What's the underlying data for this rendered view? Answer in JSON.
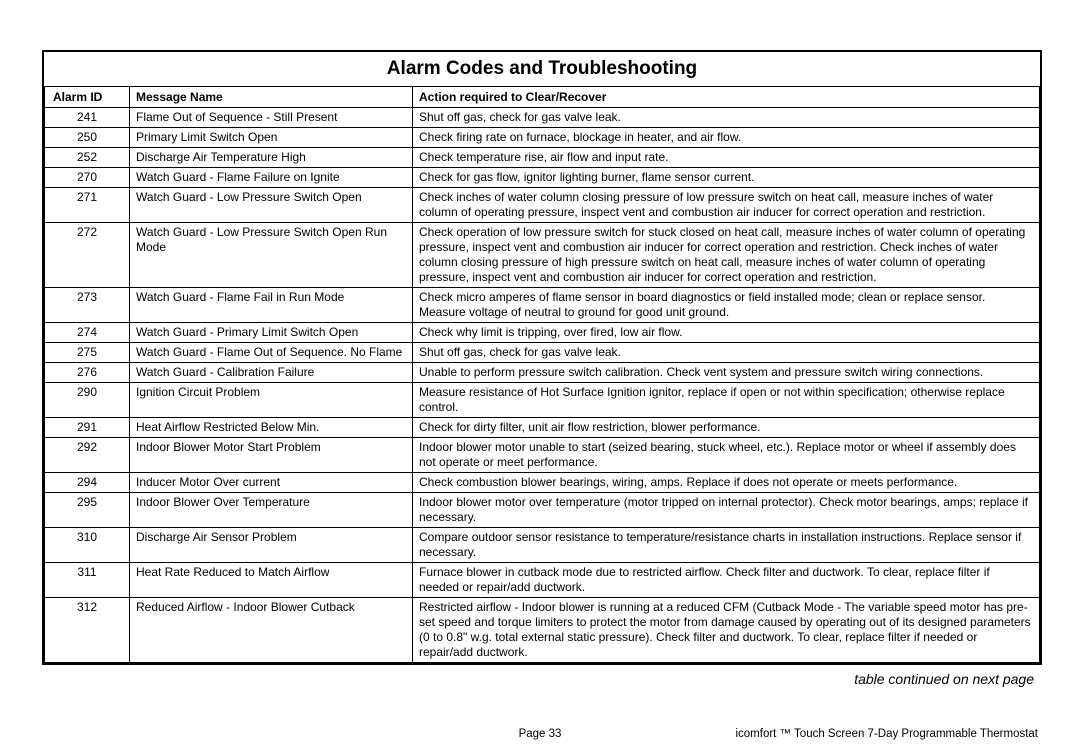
{
  "title": "Alarm Codes and Troubleshooting",
  "columns": {
    "id": "Alarm ID",
    "msg": "Message Name",
    "action": "Action required to Clear/Recover"
  },
  "rows": [
    {
      "id": "241",
      "msg": "Flame Out of Sequence - Still Present",
      "action": "Shut off gas, check for gas valve leak."
    },
    {
      "id": "250",
      "msg": "Primary Limit Switch Open",
      "action": "Check firing rate on furnace, blockage in heater, and air flow."
    },
    {
      "id": "252",
      "msg": "Discharge Air Temperature High",
      "action": "Check temperature rise, air flow and input rate."
    },
    {
      "id": "270",
      "msg": "Watch Guard - Flame Failure on Ignite",
      "action": "Check for gas flow, ignitor lighting burner, flame sensor current."
    },
    {
      "id": "271",
      "msg": "Watch Guard - Low Pressure Switch Open",
      "action": "Check inches of water column closing pressure of low pressure switch on heat call, measure inches of water column of operating pressure, inspect vent and combustion air inducer for correct operation and restriction."
    },
    {
      "id": "272",
      "msg": "Watch Guard - Low Pressure Switch Open Run Mode",
      "action": "Check operation of low pressure switch for stuck closed on heat call, measure inches of water column of operating pressure, inspect vent and combustion air inducer for correct operation and restriction. Check inches of water column closing pressure of high pressure switch on heat call, measure inches of water column of operating pressure, inspect vent and combustion air inducer for correct operation and restriction."
    },
    {
      "id": "273",
      "msg": "Watch Guard - Flame Fail in Run Mode",
      "action": "Check micro amperes of flame sensor in board diagnostics or field installed mode; clean or replace sensor. Measure voltage of neutral to ground for good unit ground."
    },
    {
      "id": "274",
      "msg": "Watch Guard - Primary Limit Switch Open",
      "action": "Check why limit is tripping, over fired, low air flow."
    },
    {
      "id": "275",
      "msg": "Watch Guard - Flame Out of Sequence. No Flame",
      "action": "Shut off gas, check for gas valve leak."
    },
    {
      "id": "276",
      "msg": "Watch Guard - Calibration Failure",
      "action": "Unable to perform pressure switch calibration. Check vent system and pressure switch wiring connections."
    },
    {
      "id": "290",
      "msg": "Ignition Circuit Problem",
      "action": "Measure resistance of Hot Surface Ignition ignitor, replace if open or not within specification; otherwise replace control."
    },
    {
      "id": "291",
      "msg": "Heat Airflow Restricted Below Min.",
      "action": "Check for dirty filter, unit air flow restriction, blower performance."
    },
    {
      "id": "292",
      "msg": "Indoor Blower Motor Start Problem",
      "action": "Indoor blower motor unable to start (seized bearing, stuck wheel, etc.). Replace motor or wheel if assembly does not operate or meet performance."
    },
    {
      "id": "294",
      "msg": "Inducer Motor Over current",
      "action": "Check combustion blower bearings, wiring, amps. Replace if does not operate or meets performance."
    },
    {
      "id": "295",
      "msg": "Indoor Blower Over Temperature",
      "action": "Indoor blower motor over temperature (motor tripped on internal protector). Check motor bearings, amps; replace if necessary."
    },
    {
      "id": "310",
      "msg": "Discharge Air Sensor Problem",
      "action": "Compare outdoor sensor resistance to temperature/resistance charts in installation instructions. Replace sensor if necessary."
    },
    {
      "id": "311",
      "msg": "Heat Rate Reduced to Match Airflow",
      "action": "Furnace blower in cutback mode due to restricted airflow. Check filter and ductwork. To clear, replace filter if needed or repair/add ductwork."
    },
    {
      "id": "312",
      "msg": "Reduced Airflow - Indoor Blower Cutback",
      "action": "Restricted airflow - Indoor blower is running at a reduced CFM (Cutback Mode - The variable speed motor has pre-set speed and torque limiters to protect the motor from damage caused by operating out of its designed parameters (0 to 0.8\" w.g. total external static pressure). Check filter and ductwork. To clear, replace filter if needed or repair/add ductwork."
    }
  ],
  "continued_text": "table continued on next page",
  "footer": {
    "page": "Page 33",
    "product": "icomfort ™ Touch Screen 7‑Day Programmable Thermostat"
  }
}
